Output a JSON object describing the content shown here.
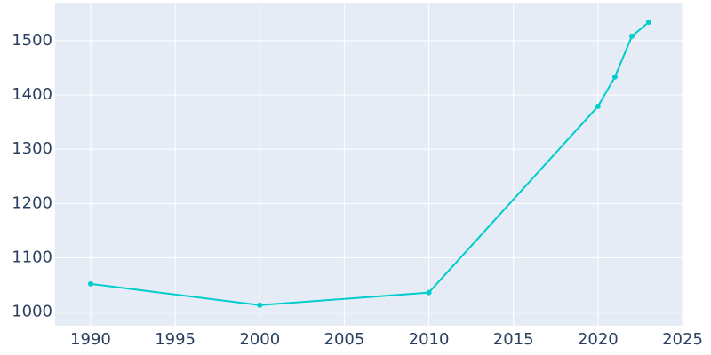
{
  "chart_data": {
    "type": "line",
    "x": [
      1990,
      2000,
      2010,
      2020,
      2021,
      2022,
      2023
    ],
    "series": [
      {
        "color": "#00cccc",
        "values": [
          1052,
          1013,
          1036,
          1379,
          1433,
          1508,
          1534
        ]
      }
    ],
    "xlim": [
      1987.9,
      2025
    ],
    "xticks": [
      1990,
      1995,
      2000,
      2005,
      2010,
      2015,
      2020,
      2025
    ],
    "ylim": [
      975,
      1570
    ],
    "yticks": [
      1000,
      1100,
      1200,
      1300,
      1400,
      1500
    ],
    "grid": true,
    "background": "#e5ecf6"
  }
}
